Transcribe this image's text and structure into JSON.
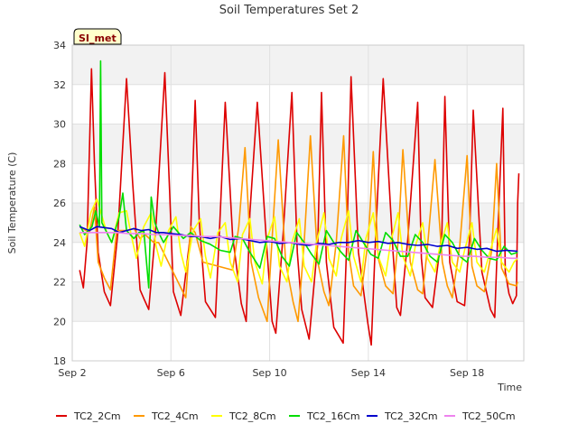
{
  "chart_data": {
    "type": "line",
    "title": "Soil Temperatures Set 2",
    "xlabel": "Time",
    "ylabel": "Soil Temperature (C)",
    "site_label": "SI_met",
    "x_ticks": [
      "Sep 2",
      "Sep 6",
      "Sep 10",
      "Sep 14",
      "Sep 18"
    ],
    "x_tick_days": [
      2,
      6,
      10,
      14,
      18
    ],
    "xlim_days": [
      2,
      20.3
    ],
    "y_ticks": [
      18,
      20,
      22,
      24,
      26,
      28,
      30,
      32,
      34
    ],
    "ylim": [
      18,
      34
    ],
    "grid": true,
    "legend_position": "bottom",
    "x_unit": "day of September",
    "series": [
      {
        "name": "TC2_2Cm",
        "color": "#dd0000",
        "x": [
          2.3,
          2.45,
          2.6,
          2.78,
          2.9,
          3.05,
          3.3,
          3.55,
          3.85,
          4.2,
          4.45,
          4.75,
          4.92,
          5.1,
          5.4,
          5.75,
          5.95,
          6.1,
          6.4,
          6.8,
          6.98,
          7.15,
          7.4,
          7.8,
          8.0,
          8.2,
          8.5,
          8.85,
          9.05,
          9.2,
          9.5,
          9.9,
          10.1,
          10.25,
          10.55,
          10.9,
          11.12,
          11.3,
          11.6,
          11.95,
          12.1,
          12.3,
          12.6,
          12.98,
          13.12,
          13.3,
          13.6,
          13.98,
          14.12,
          14.3,
          14.6,
          15.0,
          15.15,
          15.3,
          15.6,
          16.0,
          16.15,
          16.3,
          16.6,
          16.98,
          17.1,
          17.3,
          17.6,
          17.9,
          18.1,
          18.25,
          18.6,
          18.95,
          19.12,
          19.25,
          19.45,
          19.55,
          19.7,
          19.85,
          20.0,
          20.05,
          20.1
        ],
        "y": [
          22.6,
          21.7,
          24.0,
          32.8,
          28.0,
          23.5,
          21.5,
          20.8,
          24.5,
          32.3,
          27.0,
          21.6,
          21.1,
          20.6,
          25.0,
          32.6,
          26.5,
          21.5,
          20.3,
          24.5,
          31.2,
          25.0,
          21.0,
          20.2,
          25.5,
          31.1,
          24.3,
          20.9,
          20.0,
          25.5,
          31.1,
          23.5,
          20.0,
          19.4,
          24.5,
          31.6,
          23.5,
          20.6,
          19.1,
          24.0,
          31.6,
          23.0,
          19.7,
          18.9,
          23.8,
          32.4,
          23.5,
          19.9,
          18.8,
          24.5,
          32.3,
          23.5,
          20.7,
          20.3,
          24.2,
          31.1,
          23.2,
          21.2,
          20.7,
          24.5,
          31.4,
          23.0,
          21.0,
          20.8,
          24.2,
          30.7,
          22.5,
          20.6,
          20.2,
          24.6,
          30.8,
          22.5,
          21.4,
          20.9,
          21.3,
          26.0,
          27.5
        ]
      },
      {
        "name": "TC2_4Cm",
        "color": "#ff9900",
        "x": [
          2.3,
          2.7,
          2.9,
          3.05,
          3.3,
          3.55,
          3.8,
          4.2,
          4.5,
          4.75,
          4.95,
          5.3,
          5.5,
          6.6,
          6.8,
          6.98,
          7.3,
          8.5,
          8.75,
          9.0,
          9.25,
          9.55,
          9.9,
          10.1,
          10.35,
          10.65,
          10.95,
          11.15,
          11.4,
          11.65,
          11.95,
          12.2,
          12.4,
          12.7,
          13.0,
          13.2,
          13.4,
          13.7,
          14.0,
          14.2,
          14.4,
          14.7,
          15.0,
          15.2,
          15.4,
          15.7,
          16.0,
          16.2,
          16.4,
          16.7,
          17.0,
          17.2,
          17.4,
          17.7,
          18.0,
          18.2,
          18.4,
          18.7,
          19.0,
          19.2,
          19.4,
          19.7,
          20.0,
          20.05
        ],
        "y": [
          24.8,
          24.5,
          25.8,
          23.0,
          22.2,
          21.6,
          24.6,
          24.6,
          24.7,
          24.2,
          24.4,
          24.0,
          24.0,
          21.2,
          24.8,
          24.5,
          23.0,
          22.6,
          24.8,
          28.8,
          23.0,
          21.2,
          20.0,
          24.2,
          29.2,
          23.0,
          21.0,
          20.0,
          24.0,
          29.4,
          23.0,
          21.5,
          20.8,
          24.0,
          29.4,
          23.5,
          21.8,
          21.3,
          24.2,
          28.6,
          23.2,
          21.8,
          21.4,
          24.0,
          28.7,
          23.0,
          21.6,
          21.4,
          23.8,
          28.2,
          23.0,
          21.8,
          21.2,
          23.8,
          28.4,
          22.8,
          21.8,
          21.5,
          23.6,
          28.0,
          22.7,
          21.9,
          21.8,
          22.0
        ]
      },
      {
        "name": "TC2_8Cm",
        "color": "#ffff00",
        "x": [
          2.3,
          2.5,
          2.75,
          3.0,
          3.4,
          3.6,
          3.9,
          4.2,
          4.4,
          4.6,
          4.9,
          5.2,
          5.4,
          5.6,
          5.9,
          6.2,
          6.4,
          6.6,
          6.9,
          7.2,
          7.4,
          7.6,
          7.9,
          8.2,
          8.4,
          8.7,
          8.9,
          9.2,
          9.4,
          9.7,
          9.9,
          10.2,
          10.4,
          10.7,
          10.9,
          11.2,
          11.4,
          11.7,
          11.9,
          12.2,
          12.4,
          12.7,
          12.9,
          13.2,
          13.4,
          13.7,
          13.9,
          14.2,
          14.4,
          14.7,
          14.9,
          15.2,
          15.4,
          15.7,
          15.9,
          16.2,
          16.4,
          16.7,
          16.9,
          17.2,
          17.4,
          17.7,
          17.9,
          18.2,
          18.4,
          18.7,
          18.9,
          19.2,
          19.4,
          19.7,
          19.9,
          20.05
        ],
        "y": [
          24.5,
          23.8,
          25.5,
          26.2,
          24.5,
          24.0,
          25.5,
          25.6,
          24.3,
          23.2,
          24.8,
          25.5,
          23.8,
          22.8,
          24.6,
          25.3,
          23.5,
          22.5,
          24.6,
          25.2,
          23.3,
          22.2,
          24.5,
          25.0,
          23.0,
          22.0,
          24.4,
          25.2,
          23.0,
          21.9,
          24.2,
          25.3,
          22.8,
          22.0,
          24.0,
          25.2,
          22.8,
          22.0,
          24.0,
          25.5,
          23.2,
          22.3,
          24.2,
          25.6,
          23.3,
          22.0,
          24.2,
          25.5,
          23.3,
          22.3,
          24.0,
          25.5,
          23.3,
          22.3,
          23.8,
          25.0,
          23.2,
          22.5,
          23.8,
          25.0,
          23.0,
          22.5,
          23.6,
          25.0,
          23.0,
          22.5,
          23.4,
          24.7,
          23.0,
          22.5,
          23.0,
          23.2
        ]
      },
      {
        "name": "TC2_16Cm",
        "color": "#00dd00",
        "x": [
          2.3,
          2.5,
          2.8,
          2.95,
          3.1,
          3.15,
          3.2,
          3.4,
          3.6,
          3.9,
          4.05,
          4.2,
          4.5,
          4.7,
          4.9,
          5.1,
          5.2,
          5.35,
          5.5,
          5.7,
          5.9,
          6.1,
          6.3,
          6.5,
          6.8,
          7.2,
          7.6,
          8.0,
          8.4,
          8.6,
          8.9,
          9.2,
          9.6,
          9.9,
          10.2,
          10.5,
          10.8,
          11.1,
          11.4,
          11.7,
          12.0,
          12.3,
          12.6,
          12.9,
          13.2,
          13.5,
          13.8,
          14.1,
          14.4,
          14.7,
          15.0,
          15.3,
          15.6,
          15.9,
          16.2,
          16.5,
          16.8,
          17.1,
          17.4,
          17.7,
          18.0,
          18.3,
          18.6,
          18.9,
          19.2,
          19.5,
          19.8,
          20.05
        ],
        "y": [
          24.9,
          24.4,
          24.8,
          25.6,
          24.8,
          33.2,
          25.0,
          24.5,
          24.0,
          25.3,
          26.5,
          24.6,
          24.2,
          24.5,
          24.6,
          21.7,
          26.3,
          25.0,
          24.5,
          24.0,
          24.4,
          24.8,
          24.5,
          24.2,
          24.5,
          24.1,
          23.9,
          23.6,
          23.5,
          24.3,
          24.2,
          23.5,
          22.7,
          24.3,
          24.2,
          23.3,
          22.8,
          24.5,
          24.0,
          23.4,
          22.9,
          24.6,
          24.0,
          23.5,
          23.1,
          24.6,
          24.0,
          23.4,
          23.2,
          24.5,
          24.1,
          23.3,
          23.3,
          24.4,
          24.0,
          23.3,
          23.0,
          24.4,
          24.0,
          23.3,
          23.0,
          24.2,
          23.6,
          23.2,
          23.1,
          23.8,
          23.4,
          23.5
        ]
      },
      {
        "name": "TC2_32Cm",
        "color": "#0000cc",
        "x": [
          2.3,
          2.7,
          3.0,
          3.3,
          3.6,
          3.9,
          4.2,
          4.5,
          4.8,
          5.1,
          5.4,
          5.7,
          6.0,
          6.4,
          6.8,
          7.2,
          7.6,
          8.0,
          8.4,
          8.8,
          9.2,
          9.6,
          10.0,
          10.4,
          10.8,
          11.2,
          11.6,
          12.0,
          12.4,
          12.8,
          13.2,
          13.6,
          14.0,
          14.4,
          14.8,
          15.2,
          15.6,
          16.0,
          16.4,
          16.8,
          17.2,
          17.6,
          18.0,
          18.4,
          18.8,
          19.2,
          19.6,
          20.05
        ],
        "y": [
          24.8,
          24.6,
          24.8,
          24.75,
          24.7,
          24.5,
          24.6,
          24.7,
          24.6,
          24.65,
          24.5,
          24.5,
          24.45,
          24.4,
          24.3,
          24.3,
          24.2,
          24.3,
          24.15,
          24.2,
          24.1,
          24.0,
          24.05,
          23.95,
          24.0,
          23.9,
          23.85,
          23.95,
          23.9,
          24.0,
          24.0,
          24.1,
          24.0,
          24.05,
          23.95,
          24.0,
          23.9,
          23.85,
          23.9,
          23.8,
          23.85,
          23.7,
          23.75,
          23.65,
          23.7,
          23.55,
          23.6,
          23.55
        ]
      },
      {
        "name": "TC2_50Cm",
        "color": "#ee82ee",
        "x": [
          2.3,
          2.8,
          3.3,
          3.8,
          4.3,
          4.8,
          5.3,
          5.8,
          6.3,
          6.8,
          7.3,
          7.8,
          8.3,
          8.8,
          9.3,
          9.8,
          10.3,
          10.8,
          11.3,
          11.8,
          12.3,
          12.8,
          13.3,
          13.8,
          14.3,
          14.8,
          15.3,
          15.8,
          16.3,
          16.8,
          17.3,
          17.8,
          18.3,
          18.8,
          19.3,
          19.8,
          20.05
        ],
        "y": [
          24.5,
          24.5,
          24.5,
          24.5,
          24.45,
          24.45,
          24.4,
          24.4,
          24.35,
          24.35,
          24.3,
          24.3,
          24.25,
          24.2,
          24.15,
          24.1,
          24.05,
          24.0,
          23.95,
          23.9,
          23.85,
          23.8,
          23.75,
          23.7,
          23.65,
          23.6,
          23.55,
          23.5,
          23.45,
          23.4,
          23.35,
          23.3,
          23.3,
          23.25,
          23.25,
          23.2,
          23.2
        ]
      }
    ]
  }
}
